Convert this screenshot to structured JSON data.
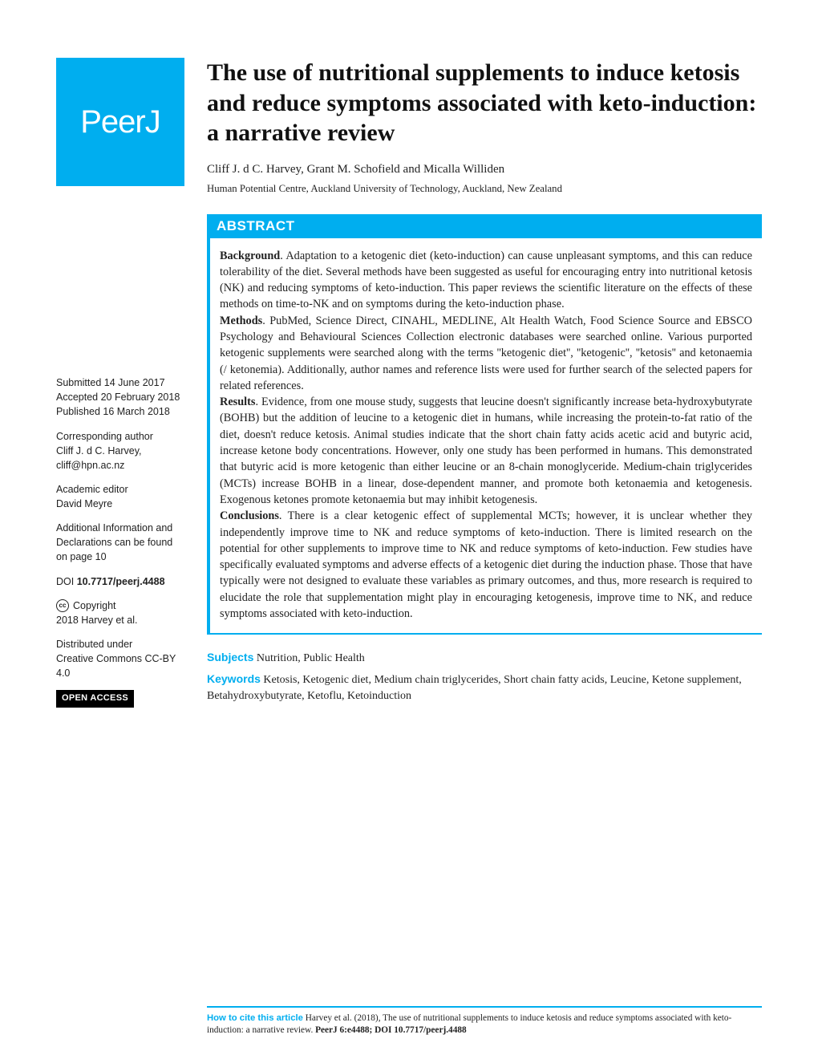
{
  "brand": {
    "name": "PeerJ",
    "logo_bg": "#00aeef"
  },
  "title": "The use of nutritional supplements to induce ketosis and reduce symptoms associated with keto-induction: a narrative review",
  "authors": "Cliff J. d C. Harvey,  Grant M. Schofield  and  Micalla Williden",
  "affiliation": "Human Potential Centre, Auckland University of Technology, Auckland, New Zealand",
  "abstract": {
    "header": "ABSTRACT",
    "background_label": "Background",
    "background_text": ". Adaptation to a ketogenic diet (keto-induction) can cause unpleasant symptoms, and this can reduce tolerability of the diet. Several methods have been suggested as useful for encouraging entry into nutritional ketosis (NK) and reducing symptoms of keto-induction. This paper reviews the scientific literature on the effects of these methods on time-to-NK and on symptoms during the keto-induction phase.",
    "methods_label": "Methods",
    "methods_text": ". PubMed, Science Direct, CINAHL, MEDLINE, Alt Health Watch, Food Science Source and EBSCO Psychology and Behavioural Sciences Collection electronic databases were searched online. Various purported ketogenic supplements were searched along with the terms ''ketogenic diet'', ''ketogenic'', ''ketosis'' and ketonaemia (/ ketonemia). Additionally, author names and reference lists were used for further search of the selected papers for related references.",
    "results_label": "Results",
    "results_text": ". Evidence, from one mouse study, suggests that leucine doesn't significantly increase beta-hydroxybutyrate (BOHB) but the addition of leucine to a ketogenic diet in humans, while increasing the protein-to-fat ratio of the diet, doesn't reduce ketosis. Animal studies indicate that the short chain fatty acids acetic acid and butyric acid, increase ketone body concentrations. However, only one study has been performed in humans. This demonstrated that butyric acid is more ketogenic than either leucine or an 8-chain monoglyceride. Medium-chain triglycerides (MCTs) increase BOHB in a linear, dose-dependent manner, and promote both ketonaemia and ketogenesis. Exogenous ketones promote ketonaemia but may inhibit ketogenesis.",
    "conclusions_label": "Conclusions",
    "conclusions_text": ". There is a clear ketogenic effect of supplemental MCTs; however, it is unclear whether they independently improve time to NK and reduce symptoms of keto-induction. There is limited research on the potential for other supplements to improve time to NK and reduce symptoms of keto-induction. Few studies have specifically evaluated symptoms and adverse effects of a ketogenic diet during the induction phase. Those that have typically were not designed to evaluate these variables as primary outcomes, and thus, more research is required to elucidate the role that supplementation might play in encouraging ketogenesis, improve time to NK, and reduce symptoms associated with keto-induction."
  },
  "subjects": {
    "label": "Subjects",
    "text": "Nutrition, Public Health"
  },
  "keywords": {
    "label": "Keywords",
    "text": "Ketosis, Ketogenic diet, Medium chain triglycerides, Short chain fatty acids, Leucine, Ketone supplement, Betahydroxybutyrate, Ketoflu, Ketoinduction"
  },
  "sidebar": {
    "submitted_label": "Submitted",
    "submitted": "14 June 2017",
    "accepted_label": "Accepted",
    "accepted": "20 February 2018",
    "published_label": "Published",
    "published": "16 March 2018",
    "corr_label": "Corresponding author",
    "corr_text": "Cliff J. d C. Harvey, cliff@hpn.ac.nz",
    "editor_label": "Academic editor",
    "editor": "David Meyre",
    "addl_text": "Additional Information and Declarations can be found on page 10",
    "doi_label": "DOI",
    "doi": "10.7717/peerj.4488",
    "copyright_label": "Copyright",
    "copyright_text": "2018 Harvey et al.",
    "dist_label": "Distributed under",
    "dist_text": "Creative Commons CC-BY 4.0",
    "open_access": "OPEN ACCESS"
  },
  "citation": {
    "label": "How to cite this article",
    "text": " Harvey et al. (2018), The use of nutritional supplements to induce ketosis and reduce symptoms associated with keto-induction: a narrative review. ",
    "ref": "PeerJ 6:e4488; DOI 10.7717/peerj.4488"
  },
  "colors": {
    "accent": "#00aeef",
    "text": "#222222",
    "bg": "#ffffff"
  }
}
